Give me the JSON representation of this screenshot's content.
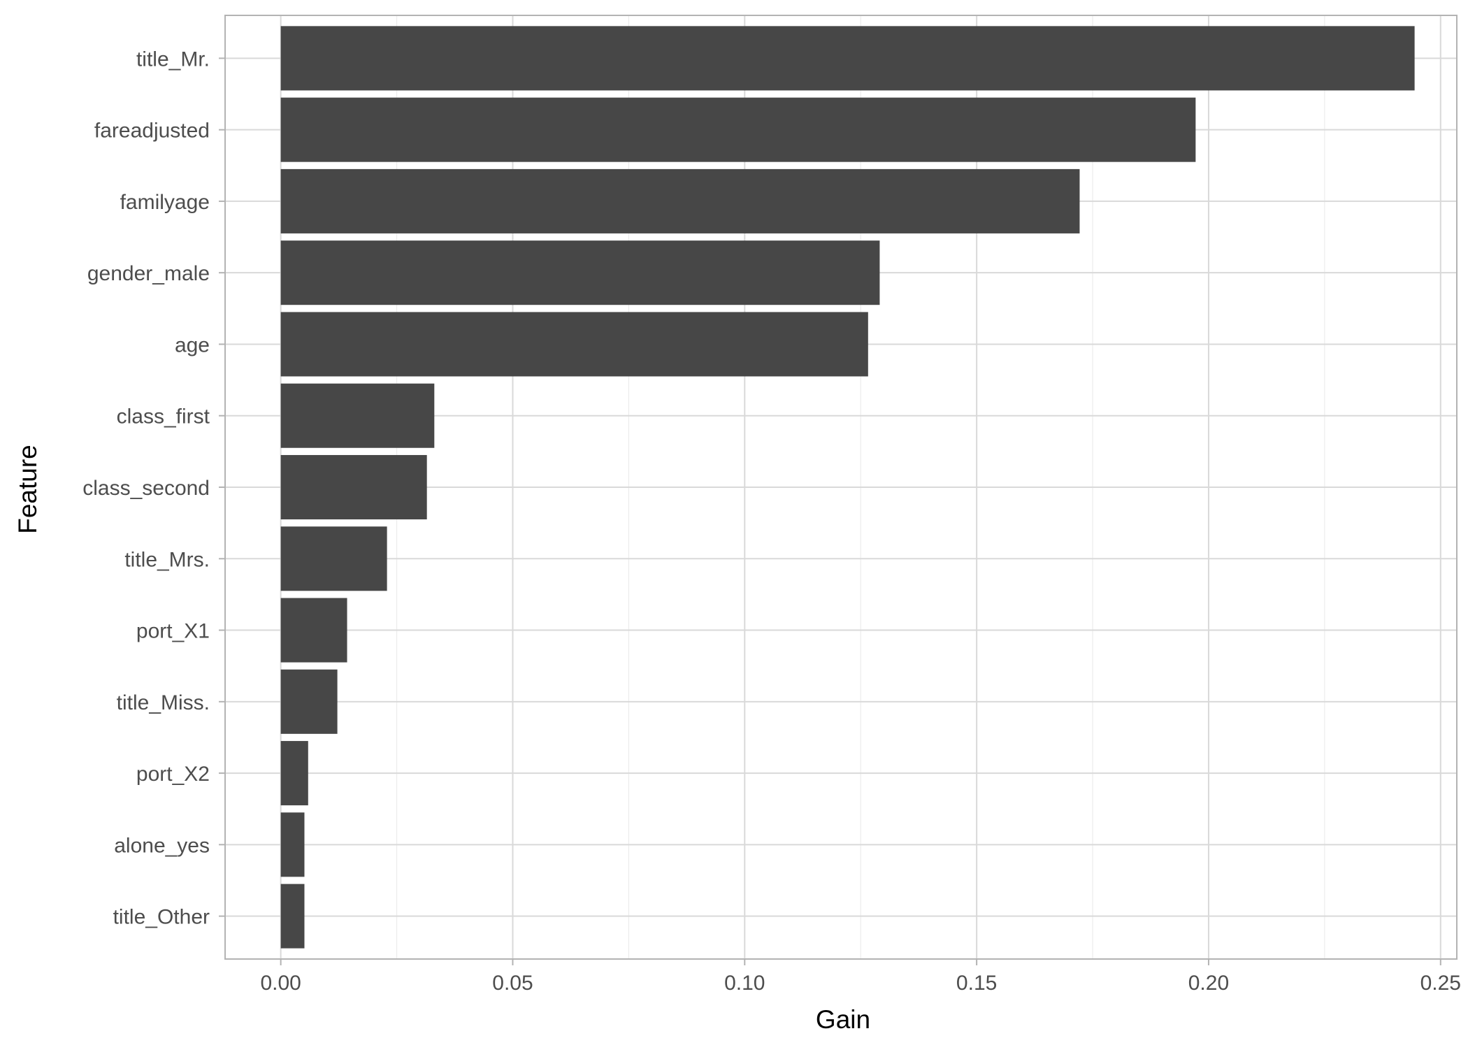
{
  "chart_data": {
    "type": "bar",
    "orientation": "horizontal",
    "categories": [
      "title_Mr.",
      "fareadjusted",
      "familyage",
      "gender_male",
      "age",
      "class_first",
      "class_second",
      "title_Mrs.",
      "port_X1",
      "title_Miss.",
      "port_X2",
      "alone_yes",
      "title_Other"
    ],
    "values": [
      0.2444,
      0.1972,
      0.1722,
      0.1291,
      0.1266,
      0.0331,
      0.0315,
      0.0229,
      0.0143,
      0.0122,
      0.0059,
      0.0051,
      0.0051
    ],
    "xlabel": "Gain",
    "ylabel": "Feature",
    "xlim": [
      -0.012,
      0.2535
    ],
    "xticks": [
      0.0,
      0.05,
      0.1,
      0.15,
      0.2,
      0.25
    ],
    "xtick_labels": [
      "0.00",
      "0.05",
      "0.10",
      "0.15",
      "0.20",
      "0.25"
    ],
    "grid": true,
    "legend": "none",
    "colors": {
      "bar": "#474747",
      "panel_border": "#b3b3b3",
      "grid_major": "#d9d9d9",
      "grid_minor": "#ececec",
      "tick_text": "#4d4d4d",
      "axis_title": "#000000"
    }
  }
}
